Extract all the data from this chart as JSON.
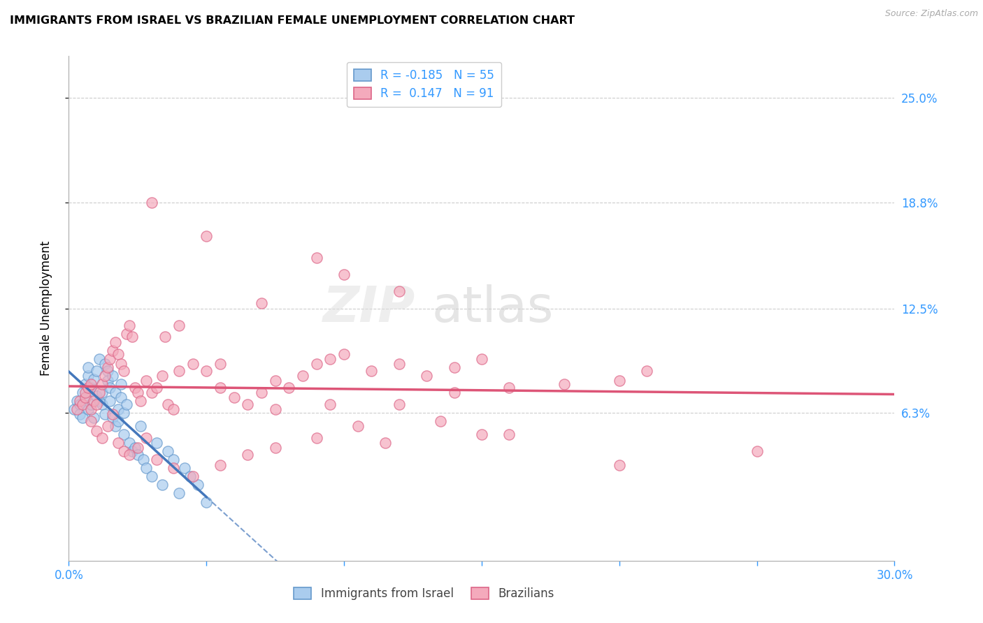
{
  "title": "IMMIGRANTS FROM ISRAEL VS BRAZILIAN FEMALE UNEMPLOYMENT CORRELATION CHART",
  "source": "Source: ZipAtlas.com",
  "ylabel": "Female Unemployment",
  "ytick_labels": [
    "25.0%",
    "18.8%",
    "12.5%",
    "6.3%"
  ],
  "ytick_values": [
    0.25,
    0.188,
    0.125,
    0.063
  ],
  "xlim": [
    0.0,
    0.3
  ],
  "ylim": [
    -0.025,
    0.275
  ],
  "watermark_zip": "ZIP",
  "watermark_atlas": "atlas",
  "legend_israel_r": "-0.185",
  "legend_israel_n": "55",
  "legend_brazil_r": "0.147",
  "legend_brazil_n": "91",
  "israel_fill_color": "#aaccee",
  "israel_edge_color": "#6699cc",
  "brazil_fill_color": "#f4aabc",
  "brazil_edge_color": "#dd6688",
  "israel_line_color": "#4477bb",
  "brazil_line_color": "#dd5577",
  "israel_scatter_x": [
    0.002,
    0.003,
    0.004,
    0.004,
    0.005,
    0.005,
    0.006,
    0.006,
    0.007,
    0.007,
    0.007,
    0.008,
    0.008,
    0.009,
    0.009,
    0.01,
    0.01,
    0.011,
    0.011,
    0.012,
    0.012,
    0.013,
    0.013,
    0.014,
    0.014,
    0.015,
    0.015,
    0.016,
    0.016,
    0.017,
    0.017,
    0.018,
    0.018,
    0.019,
    0.019,
    0.02,
    0.02,
    0.021,
    0.022,
    0.023,
    0.024,
    0.025,
    0.026,
    0.027,
    0.028,
    0.03,
    0.032,
    0.034,
    0.036,
    0.038,
    0.04,
    0.042,
    0.044,
    0.047,
    0.05
  ],
  "israel_scatter_y": [
    0.065,
    0.07,
    0.068,
    0.062,
    0.075,
    0.06,
    0.08,
    0.072,
    0.085,
    0.065,
    0.09,
    0.078,
    0.068,
    0.083,
    0.06,
    0.088,
    0.073,
    0.07,
    0.095,
    0.068,
    0.075,
    0.092,
    0.062,
    0.088,
    0.082,
    0.078,
    0.07,
    0.06,
    0.085,
    0.055,
    0.075,
    0.058,
    0.065,
    0.072,
    0.08,
    0.05,
    0.063,
    0.068,
    0.045,
    0.04,
    0.042,
    0.038,
    0.055,
    0.035,
    0.03,
    0.025,
    0.045,
    0.02,
    0.04,
    0.035,
    0.015,
    0.03,
    0.025,
    0.02,
    0.01
  ],
  "brazil_scatter_x": [
    0.003,
    0.004,
    0.005,
    0.006,
    0.006,
    0.007,
    0.008,
    0.008,
    0.009,
    0.01,
    0.011,
    0.012,
    0.013,
    0.014,
    0.015,
    0.016,
    0.017,
    0.018,
    0.019,
    0.02,
    0.021,
    0.022,
    0.023,
    0.024,
    0.025,
    0.026,
    0.028,
    0.03,
    0.032,
    0.034,
    0.036,
    0.038,
    0.04,
    0.045,
    0.05,
    0.055,
    0.06,
    0.065,
    0.07,
    0.075,
    0.08,
    0.085,
    0.09,
    0.095,
    0.1,
    0.11,
    0.12,
    0.13,
    0.14,
    0.15,
    0.008,
    0.01,
    0.012,
    0.014,
    0.016,
    0.018,
    0.02,
    0.022,
    0.025,
    0.028,
    0.032,
    0.038,
    0.045,
    0.055,
    0.065,
    0.075,
    0.09,
    0.105,
    0.12,
    0.14,
    0.16,
    0.18,
    0.2,
    0.21,
    0.16,
    0.03,
    0.05,
    0.1,
    0.15,
    0.2,
    0.04,
    0.07,
    0.12,
    0.09,
    0.25,
    0.035,
    0.055,
    0.075,
    0.095,
    0.115,
    0.135
  ],
  "brazil_scatter_y": [
    0.065,
    0.07,
    0.068,
    0.072,
    0.075,
    0.078,
    0.065,
    0.08,
    0.07,
    0.068,
    0.075,
    0.08,
    0.085,
    0.09,
    0.095,
    0.1,
    0.105,
    0.098,
    0.092,
    0.088,
    0.11,
    0.115,
    0.108,
    0.078,
    0.075,
    0.07,
    0.082,
    0.075,
    0.078,
    0.085,
    0.068,
    0.065,
    0.088,
    0.092,
    0.088,
    0.078,
    0.072,
    0.068,
    0.075,
    0.082,
    0.078,
    0.085,
    0.092,
    0.095,
    0.098,
    0.088,
    0.092,
    0.085,
    0.09,
    0.095,
    0.058,
    0.052,
    0.048,
    0.055,
    0.062,
    0.045,
    0.04,
    0.038,
    0.042,
    0.048,
    0.035,
    0.03,
    0.025,
    0.032,
    0.038,
    0.042,
    0.048,
    0.055,
    0.068,
    0.075,
    0.078,
    0.08,
    0.082,
    0.088,
    0.05,
    0.188,
    0.168,
    0.145,
    0.05,
    0.032,
    0.115,
    0.128,
    0.135,
    0.155,
    0.04,
    0.108,
    0.092,
    0.065,
    0.068,
    0.045,
    0.058
  ]
}
